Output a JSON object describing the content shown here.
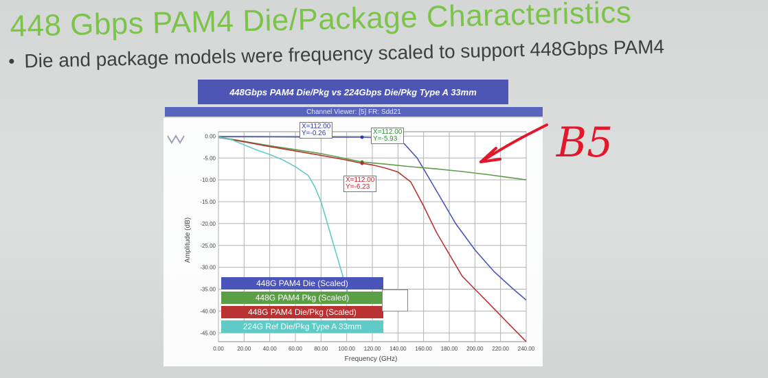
{
  "slide": {
    "title": "448 Gbps PAM4 Die/Package Characteristics",
    "bullet": "Die and package models were frequency scaled to support 448Gbps PAM4"
  },
  "chart_header": "448Gbps PAM4 Die/Pkg vs 224Gbps Die/Pkg Type A 33mm",
  "viewer_label": "Channel Viewer: [5] FR: Sdd21",
  "handwritten_note": "B5",
  "chart_data": {
    "type": "line",
    "xlabel": "Frequency (GHz)",
    "ylabel": "Amplitude (dB)",
    "xlim": [
      0,
      240
    ],
    "ylim": [
      -47,
      1
    ],
    "x_ticks": [
      "0.00",
      "20.00",
      "40.00",
      "60.00",
      "80.00",
      "100.00",
      "120.00",
      "140.00",
      "160.00",
      "180.00",
      "200.00",
      "220.00",
      "240.00"
    ],
    "y_ticks": [
      "0.00",
      "-5.00",
      "-10.00",
      "-15.00",
      "-20.00",
      "-25.00",
      "-30.00",
      "-35.00",
      "-40.00",
      "-45.00"
    ],
    "grid": true,
    "legend_position": "bottom-left",
    "series": [
      {
        "name": "448G PAM4 Die (Scaled)",
        "color": "#4b54b8",
        "x": [
          0,
          40,
          80,
          112,
          125,
          135,
          145,
          155,
          165,
          175,
          185,
          200,
          215,
          230,
          240
        ],
        "y": [
          -0.15,
          -0.18,
          -0.22,
          -0.26,
          -0.4,
          -0.6,
          -1.8,
          -5.0,
          -10.0,
          -15.0,
          -20.0,
          -26.0,
          -31.0,
          -35.0,
          -37.5
        ]
      },
      {
        "name": "448G PAM4 Pkg (Scaled)",
        "color": "#5a9e46",
        "x": [
          0,
          20,
          40,
          60,
          80,
          100,
          112,
          130,
          150,
          170,
          190,
          210,
          225,
          240
        ],
        "y": [
          -0.2,
          -1.2,
          -2.2,
          -3.1,
          -4.0,
          -5.2,
          -5.93,
          -6.4,
          -7.0,
          -7.5,
          -8.1,
          -8.8,
          -9.4,
          -10.0
        ]
      },
      {
        "name": "448G PAM4 Die/Pkg  (Scaled)",
        "color": "#b83232",
        "x": [
          0,
          20,
          40,
          60,
          80,
          100,
          112,
          120,
          130,
          140,
          150,
          160,
          170,
          180,
          190,
          200,
          210,
          220,
          230,
          240
        ],
        "y": [
          -0.3,
          -1.3,
          -2.4,
          -3.4,
          -4.4,
          -5.5,
          -6.23,
          -6.6,
          -7.3,
          -8.2,
          -10.5,
          -16.0,
          -22.0,
          -27.0,
          -32.0,
          -35.0,
          -38.0,
          -41.0,
          -44.0,
          -47.0
        ]
      },
      {
        "name": "224G Ref Die/Pkg Type A 33mm",
        "color": "#5ecbc6",
        "x": [
          0,
          10,
          20,
          30,
          40,
          50,
          60,
          70,
          75,
          80,
          85,
          90,
          95,
          100,
          103
        ],
        "y": [
          -0.2,
          -0.8,
          -2.0,
          -3.2,
          -4.2,
          -5.4,
          -7.0,
          -9.0,
          -11.5,
          -15.0,
          -20.0,
          -25.0,
          -30.0,
          -35.0,
          -38.0
        ]
      }
    ],
    "markers": [
      {
        "x": 112,
        "y": -0.26,
        "label_x": "X=112.00",
        "label_y": "Y=-0.26",
        "color": "#2c38a8"
      },
      {
        "x": 112,
        "y": -5.93,
        "label_x": "X=112.00",
        "label_y": "Y=-5.93",
        "color": "#2f8a38"
      },
      {
        "x": 112,
        "y": -6.23,
        "label_x": "X=112.00",
        "label_y": "Y=-6.23",
        "color": "#c0282b"
      }
    ]
  }
}
